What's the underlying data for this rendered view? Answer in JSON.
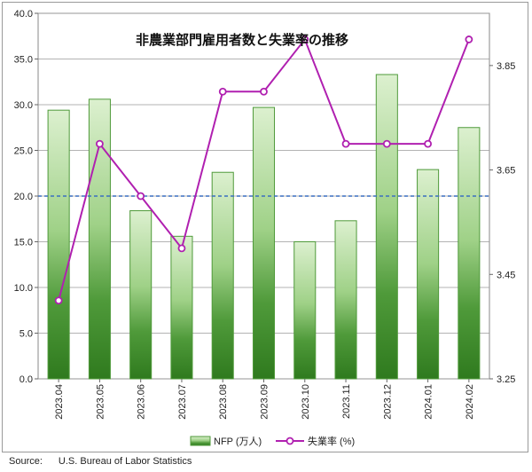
{
  "chart_data": {
    "type": "bar",
    "title": "非農業部門雇用者数と失業率の推移",
    "categories": [
      "2023.04",
      "2023.05",
      "2023.06",
      "2023.07",
      "2023.08",
      "2023.09",
      "2023.10",
      "2023.11",
      "2023.12",
      "2024.01",
      "2024.02"
    ],
    "series": [
      {
        "name": "NFP (万人)",
        "type": "bar",
        "axis": "left",
        "values": [
          29.4,
          30.6,
          18.4,
          15.6,
          22.6,
          29.7,
          15.0,
          17.3,
          33.3,
          22.9,
          27.5
        ]
      },
      {
        "name": "失業率 (%)",
        "type": "line",
        "axis": "right",
        "values": [
          3.4,
          3.7,
          3.6,
          3.5,
          3.8,
          3.8,
          3.9,
          3.7,
          3.7,
          3.7,
          3.9
        ]
      }
    ],
    "y_left": {
      "range": [
        0,
        40
      ],
      "ticks": [
        "0.0",
        "5.0",
        "10.0",
        "15.0",
        "20.0",
        "25.0",
        "30.0",
        "35.0",
        "40.0"
      ]
    },
    "y_right": {
      "range": [
        3.25,
        3.95
      ],
      "ticks": [
        "3.25",
        "3.45",
        "3.65",
        "3.85"
      ]
    },
    "reference_line": {
      "value": 20.0,
      "axis": "left",
      "style": "dashed"
    },
    "grid": true,
    "legend_position": "bottom-center",
    "colors": {
      "bar_light": "#d4ecc4",
      "bar_dark": "#2f7a1e",
      "bar_border": "#4f9a3a",
      "line": "#b020b0",
      "ref_line": "#3a6fc0",
      "grid": "#9a9a9a"
    }
  },
  "source": {
    "label": "Source:",
    "text": "U.S. Bureau of Labor Statistics"
  }
}
